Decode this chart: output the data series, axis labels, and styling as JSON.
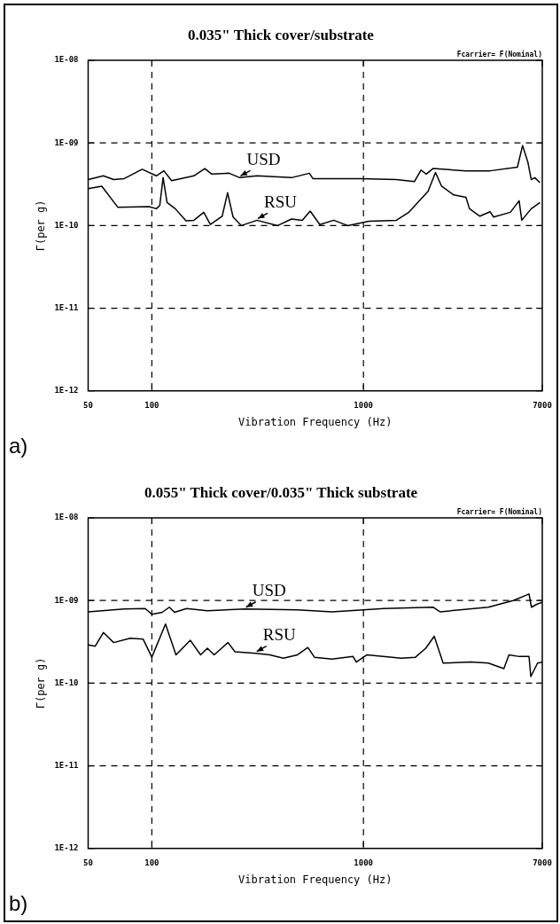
{
  "chart_data": [
    {
      "type": "line",
      "title": "0.035\" Thick cover/substrate",
      "xlabel": "Vibration Frequency (Hz)",
      "ylabel": "Γ(per g)",
      "log": "xy",
      "grid": true,
      "marker": "none",
      "line_style": "solid",
      "xlim": [
        50,
        7000
      ],
      "xticks": [
        50,
        100,
        1000,
        7000
      ],
      "ylim": [
        1e-12,
        1e-08
      ],
      "yticks": [
        {
          "value": 1e-12,
          "label": "1E-12"
        },
        {
          "value": 1e-11,
          "label": "1E-11"
        },
        {
          "value": 1e-10,
          "label": "1E-10"
        },
        {
          "value": 1e-09,
          "label": "1E-09"
        },
        {
          "value": 1e-08,
          "label": "1E-08"
        }
      ],
      "series": [
        {
          "name": "USD",
          "color": "#000000",
          "x": [
            50,
            59,
            66,
            74,
            90,
            105,
            114,
            124,
            158,
            178,
            192,
            232,
            260,
            314,
            457,
            555,
            577,
            980,
            1430,
            1740,
            1870,
            1980,
            2130,
            3050,
            3970,
            5340,
            5650,
            5980,
            6210,
            6450,
            6830
          ],
          "values": [
            3.6e-10,
            4e-10,
            3.6e-10,
            3.7e-10,
            4.8e-10,
            4e-10,
            4.6e-10,
            3.5e-10,
            4e-10,
            4.9e-10,
            4.2e-10,
            4.3e-10,
            3.8e-10,
            4e-10,
            3.8e-10,
            4.3e-10,
            3.7e-10,
            3.7e-10,
            3.6e-10,
            3.4e-10,
            4.7e-10,
            4.2e-10,
            4.9e-10,
            4.6e-10,
            4.6e-10,
            5.1e-10,
            9.3e-10,
            5.9e-10,
            3.6e-10,
            3.8e-10,
            3.3e-10
          ]
        },
        {
          "name": "RSU",
          "color": "#000000",
          "x": [
            50,
            58,
            69,
            97,
            105,
            109,
            113,
            118,
            129,
            145,
            158,
            176,
            189,
            215,
            228,
            242,
            265,
            314,
            393,
            457,
            514,
            560,
            622,
            724,
            842,
            1060,
            1430,
            1640,
            1840,
            2020,
            2190,
            2340,
            2670,
            3050,
            3170,
            3550,
            3970,
            4120,
            4950,
            5440,
            5600,
            6210,
            6830
          ],
          "values": [
            2.8e-10,
            3e-10,
            1.67e-10,
            1.7e-10,
            1.6e-10,
            1.75e-10,
            3.8e-10,
            1.9e-10,
            1.6e-10,
            1.14e-10,
            1.16e-10,
            1.45e-10,
            1.03e-10,
            1.3e-10,
            2.5e-10,
            1.27e-10,
            1e-10,
            1.16e-10,
            1e-10,
            1.2e-10,
            1.16e-10,
            1.5e-10,
            1.03e-10,
            1.16e-10,
            1e-10,
            1.13e-10,
            1.16e-10,
            1.45e-10,
            2e-10,
            2.6e-10,
            4.4e-10,
            3e-10,
            2.35e-10,
            2.2e-10,
            1.6e-10,
            1.3e-10,
            1.47e-10,
            1.27e-10,
            1.45e-10,
            2e-10,
            1.16e-10,
            1.6e-10,
            1.9e-10
          ]
        }
      ],
      "annotations": [
        "Fcarrier= F(Nominal)",
        "a)"
      ]
    },
    {
      "type": "line",
      "title": "0.055\" Thick cover/0.035\" Thick substrate",
      "xlabel": "Vibration Frequency (Hz)",
      "ylabel": "Γ(per g)",
      "log": "xy",
      "grid": true,
      "marker": "none",
      "line_style": "solid",
      "xlim": [
        50,
        7000
      ],
      "xticks": [
        50,
        100,
        1000,
        7000
      ],
      "ylim": [
        1e-12,
        1e-08
      ],
      "yticks": [
        {
          "value": 1e-12,
          "label": "1E-12"
        },
        {
          "value": 1e-11,
          "label": "1E-11"
        },
        {
          "value": 1e-10,
          "label": "1E-10"
        },
        {
          "value": 1e-09,
          "label": "1E-09"
        },
        {
          "value": 1e-08,
          "label": "1E-08"
        }
      ],
      "series": [
        {
          "name": "USD",
          "color": "#000000",
          "x": [
            50,
            74,
            93,
            100,
            112,
            121,
            128,
            146,
            183,
            276,
            488,
            710,
            1250,
            2130,
            2300,
            3890,
            5100,
            6060,
            6220,
            6650,
            7000
          ],
          "values": [
            7.3e-10,
            7.9e-10,
            8e-10,
            6.8e-10,
            7.2e-10,
            8.3e-10,
            7.2e-10,
            8e-10,
            7.5e-10,
            7.9e-10,
            7.7e-10,
            7.3e-10,
            8e-10,
            8.3e-10,
            7.3e-10,
            8.3e-10,
            1e-09,
            1.2e-09,
            8.3e-10,
            9.1e-10,
            9.5e-10
          ]
        },
        {
          "name": "RSU",
          "color": "#000000",
          "x": [
            50,
            54,
            59,
            66,
            79,
            91,
            100,
            116,
            130,
            152,
            170,
            183,
            197,
            229,
            247,
            310,
            361,
            418,
            488,
            546,
            587,
            710,
            893,
            925,
            1040,
            1510,
            1760,
            1970,
            2160,
            2380,
            3220,
            3890,
            4610,
            4870,
            5450,
            6060,
            6180,
            6650,
            7000
          ],
          "values": [
            2.9e-10,
            2.8e-10,
            4.1e-10,
            3.1e-10,
            3.5e-10,
            3.4e-10,
            2.06e-10,
            5.2e-10,
            2.2e-10,
            3.3e-10,
            2.2e-10,
            2.65e-10,
            2.2e-10,
            3.1e-10,
            2.4e-10,
            2.3e-10,
            2.2e-10,
            2e-10,
            2.2e-10,
            2.7e-10,
            2.06e-10,
            1.95e-10,
            2.1e-10,
            1.8e-10,
            2.2e-10,
            2e-10,
            2.06e-10,
            2.65e-10,
            3.7e-10,
            1.75e-10,
            1.8e-10,
            1.75e-10,
            1.5e-10,
            2.2e-10,
            2.1e-10,
            2.1e-10,
            1.2e-10,
            1.75e-10,
            1.8e-10
          ]
        }
      ],
      "annotations": [
        "Fcarrier= F(Nominal)",
        "b)"
      ]
    }
  ]
}
